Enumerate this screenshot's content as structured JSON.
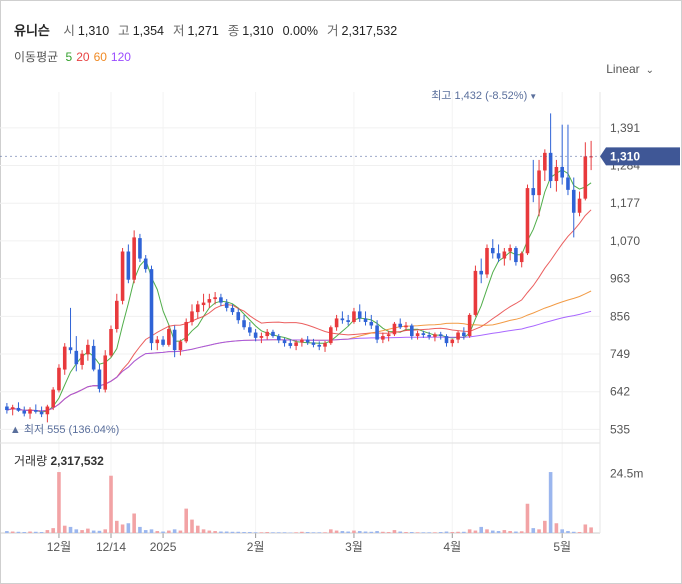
{
  "header": {
    "name": "유니슨",
    "items": [
      {
        "label": "시",
        "value": "1,310"
      },
      {
        "label": "고",
        "value": "1,354"
      },
      {
        "label": "저",
        "value": "1,271"
      },
      {
        "label": "종",
        "value": "1,310"
      },
      {
        "label": "",
        "value": "0.00%"
      },
      {
        "label": "거",
        "value": "2,317,532"
      }
    ]
  },
  "moving_average": {
    "label": "이동평균",
    "periods": [
      {
        "value": "5",
        "color": "#33a02c"
      },
      {
        "value": "20",
        "color": "#e84343"
      },
      {
        "value": "60",
        "color": "#f08a24"
      },
      {
        "value": "120",
        "color": "#9a4dff"
      }
    ]
  },
  "scale_button": "Linear",
  "colors": {
    "up": "#e8393c",
    "down": "#2f63d6",
    "current_badge": "#3f5796"
  },
  "chart_data": {
    "type": "candlestick",
    "y_ticks": [
      535,
      642,
      749,
      856,
      963,
      1070,
      1177,
      1284,
      1391
    ],
    "y_tick_labels": [
      "535",
      "642",
      "749",
      "856",
      "963",
      "1,070",
      "1,177",
      "1,284",
      "1,391"
    ],
    "ylim": [
      505,
      1470
    ],
    "x_ticks": [
      {
        "label": "12월",
        "index": 9
      },
      {
        "label": "12/14",
        "index": 18
      },
      {
        "label": "2025",
        "index": 27
      },
      {
        "label": "2월",
        "index": 43
      },
      {
        "label": "3월",
        "index": 60
      },
      {
        "label": "4월",
        "index": 77
      },
      {
        "label": "5월",
        "index": 96
      }
    ],
    "current": {
      "value": 1310,
      "label": "1,310"
    },
    "max_annotation": {
      "label": "최고 1,432 (-8.52%)",
      "value": 1432,
      "index": 91
    },
    "min_annotation": {
      "label": "최저 555 (136.04%)",
      "value": 555,
      "index": 0
    },
    "ohlc": [
      [
        600,
        610,
        580,
        590
      ],
      [
        592,
        605,
        575,
        598
      ],
      [
        596,
        612,
        585,
        588
      ],
      [
        588,
        600,
        572,
        580
      ],
      [
        580,
        598,
        565,
        592
      ],
      [
        590,
        606,
        580,
        585
      ],
      [
        585,
        600,
        570,
        578
      ],
      [
        578,
        605,
        555,
        600
      ],
      [
        598,
        655,
        590,
        648
      ],
      [
        646,
        720,
        640,
        710
      ],
      [
        705,
        780,
        690,
        770
      ],
      [
        768,
        880,
        750,
        760
      ],
      [
        758,
        800,
        700,
        720
      ],
      [
        718,
        760,
        705,
        750
      ],
      [
        748,
        790,
        730,
        775
      ],
      [
        772,
        790,
        700,
        705
      ],
      [
        705,
        720,
        640,
        650
      ],
      [
        648,
        760,
        640,
        745
      ],
      [
        745,
        830,
        740,
        820
      ],
      [
        820,
        920,
        810,
        900
      ],
      [
        900,
        1050,
        890,
        1040
      ],
      [
        1040,
        1060,
        950,
        960
      ],
      [
        960,
        1100,
        950,
        1080
      ],
      [
        1078,
        1090,
        1010,
        1020
      ],
      [
        1020,
        1030,
        980,
        990
      ],
      [
        990,
        1000,
        760,
        780
      ],
      [
        780,
        800,
        760,
        790
      ],
      [
        790,
        800,
        770,
        775
      ],
      [
        775,
        830,
        770,
        820
      ],
      [
        818,
        830,
        740,
        760
      ],
      [
        760,
        790,
        745,
        785
      ],
      [
        785,
        850,
        780,
        840
      ],
      [
        840,
        890,
        830,
        870
      ],
      [
        868,
        900,
        850,
        890
      ],
      [
        888,
        920,
        870,
        895
      ],
      [
        895,
        920,
        880,
        905
      ],
      [
        905,
        925,
        890,
        910
      ],
      [
        910,
        920,
        885,
        895
      ],
      [
        895,
        905,
        870,
        880
      ],
      [
        880,
        890,
        860,
        868
      ],
      [
        868,
        878,
        835,
        845
      ],
      [
        845,
        860,
        818,
        825
      ],
      [
        825,
        840,
        800,
        810
      ],
      [
        810,
        820,
        785,
        795
      ],
      [
        795,
        810,
        780,
        800
      ],
      [
        800,
        820,
        790,
        812
      ],
      [
        812,
        818,
        795,
        800
      ],
      [
        800,
        806,
        780,
        788
      ],
      [
        788,
        795,
        770,
        780
      ],
      [
        780,
        790,
        765,
        772
      ],
      [
        772,
        788,
        760,
        782
      ],
      [
        782,
        795,
        770,
        790
      ],
      [
        790,
        800,
        775,
        782
      ],
      [
        782,
        792,
        768,
        775
      ],
      [
        775,
        785,
        760,
        770
      ],
      [
        770,
        786,
        755,
        780
      ],
      [
        780,
        830,
        775,
        825
      ],
      [
        825,
        860,
        815,
        850
      ],
      [
        850,
        870,
        835,
        845
      ],
      [
        845,
        860,
        830,
        840
      ],
      [
        840,
        880,
        835,
        870
      ],
      [
        870,
        890,
        840,
        850
      ],
      [
        850,
        870,
        830,
        840
      ],
      [
        840,
        860,
        820,
        830
      ],
      [
        830,
        845,
        780,
        790
      ],
      [
        790,
        810,
        780,
        800
      ],
      [
        800,
        815,
        785,
        805
      ],
      [
        805,
        840,
        800,
        835
      ],
      [
        835,
        850,
        820,
        825
      ],
      [
        825,
        840,
        815,
        830
      ],
      [
        830,
        835,
        790,
        800
      ],
      [
        800,
        815,
        790,
        808
      ],
      [
        808,
        815,
        795,
        803
      ],
      [
        803,
        812,
        790,
        798
      ],
      [
        798,
        810,
        785,
        805
      ],
      [
        805,
        812,
        790,
        800
      ],
      [
        800,
        805,
        770,
        780
      ],
      [
        780,
        792,
        770,
        790
      ],
      [
        790,
        815,
        780,
        810
      ],
      [
        810,
        825,
        790,
        800
      ],
      [
        800,
        865,
        795,
        860
      ],
      [
        860,
        1000,
        855,
        985
      ],
      [
        985,
        1020,
        950,
        975
      ],
      [
        975,
        1060,
        965,
        1050
      ],
      [
        1050,
        1075,
        1020,
        1035
      ],
      [
        1035,
        1060,
        1010,
        1020
      ],
      [
        1020,
        1050,
        1000,
        1040
      ],
      [
        1040,
        1060,
        1015,
        1050
      ],
      [
        1050,
        1055,
        1000,
        1010
      ],
      [
        1010,
        1040,
        995,
        1035
      ],
      [
        1035,
        1230,
        1030,
        1220
      ],
      [
        1220,
        1300,
        1180,
        1200
      ],
      [
        1200,
        1300,
        1140,
        1270
      ],
      [
        1270,
        1330,
        1240,
        1320
      ],
      [
        1320,
        1432,
        1220,
        1240
      ],
      [
        1240,
        1300,
        1210,
        1280
      ],
      [
        1280,
        1400,
        1230,
        1250
      ],
      [
        1250,
        1400,
        1200,
        1215
      ],
      [
        1215,
        1250,
        1080,
        1150
      ],
      [
        1150,
        1210,
        1140,
        1190
      ],
      [
        1190,
        1350,
        1185,
        1310
      ],
      [
        1310,
        1354,
        1271,
        1310
      ]
    ],
    "volume_ticks": [
      {
        "label": "24.5m",
        "value": 24500000
      }
    ],
    "volume_max": 32000000,
    "volume": [
      0.8,
      0.6,
      0.5,
      0.4,
      0.6,
      0.5,
      0.4,
      1.2,
      2.0,
      25.0,
      3.0,
      2.5,
      1.5,
      1.2,
      1.8,
      1.0,
      0.9,
      1.5,
      23.5,
      5.0,
      3.5,
      4.0,
      8.0,
      2.5,
      1.2,
      1.5,
      0.8,
      0.6,
      1.0,
      1.5,
      1.0,
      10.0,
      5.5,
      3.0,
      1.5,
      1.0,
      0.8,
      0.6,
      0.6,
      0.5,
      0.5,
      0.4,
      0.4,
      0.3,
      0.3,
      0.4,
      0.3,
      0.3,
      0.3,
      0.2,
      0.3,
      0.5,
      0.4,
      0.3,
      0.3,
      0.3,
      1.5,
      1.0,
      0.8,
      0.6,
      1.0,
      0.8,
      0.6,
      0.5,
      0.8,
      0.5,
      0.4,
      1.2,
      0.6,
      0.4,
      0.4,
      0.3,
      0.3,
      0.3,
      0.3,
      0.4,
      0.6,
      0.4,
      0.5,
      0.5,
      1.5,
      1.0,
      2.5,
      1.5,
      1.0,
      0.8,
      1.2,
      0.8,
      0.6,
      0.7,
      12.0,
      2.0,
      1.5,
      5.0,
      25.0,
      4.0,
      1.5,
      0.8,
      0.5,
      0.4,
      3.5,
      2.3
    ],
    "volume_title": "거래량",
    "volume_value": "2,317,532"
  }
}
